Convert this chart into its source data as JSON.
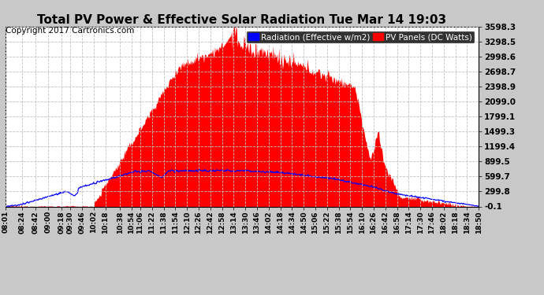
{
  "title": "Total PV Power & Effective Solar Radiation Tue Mar 14 19:03",
  "copyright": "Copyright 2017 Cartronics.com",
  "legend_radiation": "Radiation (Effective w/m2)",
  "legend_pv": "PV Panels (DC Watts)",
  "ylabel_values": [
    3598.3,
    3298.5,
    2998.6,
    2698.7,
    2398.9,
    2099.0,
    1799.1,
    1499.3,
    1199.4,
    899.5,
    599.7,
    299.8,
    -0.1
  ],
  "ymin": -0.1,
  "ymax": 3598.3,
  "bg_color": "#c8c8c8",
  "plot_bg_color": "#ffffff",
  "pv_color": "#ff0000",
  "radiation_color": "#0000ff",
  "title_color": "#000000",
  "grid_color": "#aaaaaa",
  "title_fontsize": 11,
  "copyright_fontsize": 7.5,
  "legend_fontsize": 7.5,
  "tick_fontsize": 6.5,
  "ytick_fontsize": 7.5,
  "x_tick_labels": [
    "08:01",
    "08:24",
    "08:42",
    "09:00",
    "09:18",
    "09:30",
    "09:46",
    "10:02",
    "10:18",
    "10:38",
    "10:54",
    "11:06",
    "11:22",
    "11:38",
    "11:54",
    "12:10",
    "12:26",
    "12:42",
    "12:58",
    "13:14",
    "13:30",
    "13:46",
    "14:02",
    "14:18",
    "14:34",
    "14:50",
    "15:06",
    "15:22",
    "15:38",
    "15:54",
    "16:10",
    "16:26",
    "16:42",
    "16:58",
    "17:14",
    "17:30",
    "17:46",
    "18:02",
    "18:18",
    "18:34",
    "18:50"
  ],
  "n_ticks": 41
}
